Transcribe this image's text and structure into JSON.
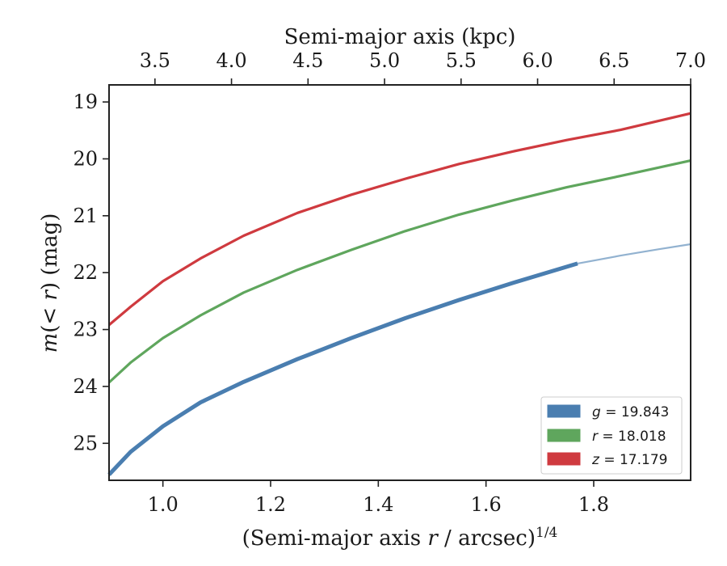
{
  "chart_data": {
    "type": "line",
    "xlabel": "(Semi-major axis r / arcsec)",
    "xlabel_parts": {
      "pre": "(Semi-major axis ",
      "var": "r",
      "post": " / arcsec)",
      "sup": "1/4"
    },
    "ylabel": "m(< r) (mag)",
    "ylabel_parts": {
      "var": "m",
      "paren": "(",
      "lt": "< ",
      "r": "r",
      "close": ")",
      "unit": " (mag)"
    },
    "top_xlabel": "Semi-major axis (kpc)",
    "xlim": [
      0.9,
      1.98
    ],
    "ylim": [
      25.65,
      18.7
    ],
    "y_inverted": true,
    "top_xlim": [
      3.2,
      7.0
    ],
    "x_ticks": [
      1.0,
      1.2,
      1.4,
      1.6,
      1.8
    ],
    "x_tick_labels": [
      "1.0",
      "1.2",
      "1.4",
      "1.6",
      "1.8"
    ],
    "y_ticks": [
      19,
      20,
      21,
      22,
      23,
      24,
      25
    ],
    "y_tick_labels": [
      "19",
      "20",
      "21",
      "22",
      "23",
      "24",
      "25"
    ],
    "top_ticks": [
      3.5,
      4.0,
      4.5,
      5.0,
      5.5,
      6.0,
      6.5,
      7.0
    ],
    "top_tick_labels": [
      "3.5",
      "4.0",
      "4.5",
      "5.0",
      "5.5",
      "6.0",
      "6.5",
      "7.0"
    ],
    "legend_position": "lower right",
    "series": [
      {
        "name": "g = 19.843",
        "name_parts": {
          "var": "g",
          "rest": " = 19.843"
        },
        "color": "#4a7eb0",
        "x": [
          0.9,
          0.94,
          1.0,
          1.07,
          1.15,
          1.25,
          1.35,
          1.45,
          1.55,
          1.65,
          1.77
        ],
        "y": [
          25.55,
          25.15,
          24.7,
          24.28,
          23.92,
          23.52,
          23.15,
          22.8,
          22.48,
          22.18,
          21.84
        ],
        "x_ext": [
          1.77,
          1.85,
          1.92,
          1.98
        ],
        "y_ext": [
          21.84,
          21.7,
          21.59,
          21.5
        ]
      },
      {
        "name": "r = 18.018",
        "name_parts": {
          "var": "r",
          "rest": " = 18.018"
        },
        "color": "#5fa65d",
        "x": [
          0.9,
          0.94,
          1.0,
          1.07,
          1.15,
          1.25,
          1.35,
          1.45,
          1.55,
          1.65,
          1.75,
          1.85,
          1.98
        ],
        "y": [
          23.93,
          23.58,
          23.15,
          22.75,
          22.35,
          21.95,
          21.6,
          21.27,
          20.98,
          20.73,
          20.5,
          20.3,
          20.03
        ]
      },
      {
        "name": "z = 17.179",
        "name_parts": {
          "var": "z",
          "rest": " = 17.179"
        },
        "color": "#cf3a3f",
        "x": [
          0.9,
          0.94,
          1.0,
          1.07,
          1.15,
          1.25,
          1.35,
          1.45,
          1.55,
          1.65,
          1.75,
          1.85,
          1.98
        ],
        "y": [
          22.92,
          22.6,
          22.15,
          21.75,
          21.35,
          20.95,
          20.63,
          20.35,
          20.09,
          19.87,
          19.67,
          19.49,
          19.2
        ]
      }
    ]
  }
}
